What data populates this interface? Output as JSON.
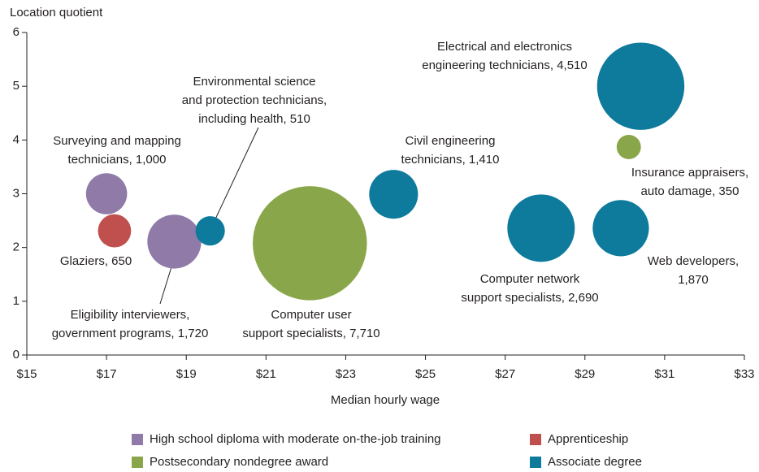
{
  "chart_data": {
    "type": "bubble",
    "ylabel": "Location quotient",
    "xlabel": "Median hourly wage",
    "xlim": [
      15,
      33
    ],
    "ylim": [
      0,
      6
    ],
    "xticks": [
      {
        "value": 15,
        "label": "$15"
      },
      {
        "value": 17,
        "label": "$17"
      },
      {
        "value": 19,
        "label": "$19"
      },
      {
        "value": 21,
        "label": "$21"
      },
      {
        "value": 23,
        "label": "$23"
      },
      {
        "value": 25,
        "label": "$25"
      },
      {
        "value": 27,
        "label": "$27"
      },
      {
        "value": 29,
        "label": "$29"
      },
      {
        "value": 31,
        "label": "$31"
      },
      {
        "value": 33,
        "label": "$33"
      }
    ],
    "yticks": [
      0,
      1,
      2,
      3,
      4,
      5,
      6
    ],
    "series": [
      {
        "name": "High school diploma with moderate on-the-job training",
        "color": "#8f7aa8",
        "x": [
          17.0,
          18.7
        ],
        "values": [
          3.0,
          2.11
        ],
        "sizes": [
          1000,
          1720
        ],
        "labels": [
          [
            "Surveying and mapping",
            "technicians, 1,000"
          ],
          [
            "Eligibility interviewers,",
            "government programs, 1,720"
          ]
        ]
      },
      {
        "name": "Apprenticeship",
        "color": "#c0504d",
        "x": [
          17.2
        ],
        "values": [
          2.31
        ],
        "sizes": [
          650
        ],
        "labels": [
          [
            "Glaziers, 650"
          ]
        ]
      },
      {
        "name": "Postsecondary nondegree award",
        "color": "#8aa64a",
        "x": [
          22.1,
          30.1
        ],
        "values": [
          2.08,
          3.87
        ],
        "sizes": [
          7710,
          350
        ],
        "labels": [
          [
            "Computer user",
            "support specialists, 7,710"
          ],
          [
            "Insurance appraisers,",
            "auto damage, 350"
          ]
        ]
      },
      {
        "name": "Associate degree",
        "color": "#0e7a9c",
        "x": [
          19.6,
          24.2,
          30.4,
          27.9,
          29.9
        ],
        "values": [
          2.31,
          2.99,
          5.0,
          2.36,
          2.36
        ],
        "sizes": [
          510,
          1410,
          4510,
          2690,
          1870
        ],
        "labels": [
          [
            "Environmental science",
            "and protection technicians,",
            "including health, 510"
          ],
          [
            "Civil engineering",
            "technicians, 1,410"
          ],
          [
            "Electrical and electronics",
            "engineering technicians, 4,510"
          ],
          [
            "Computer network",
            "support specialists, 2,690"
          ],
          [
            "Web developers,",
            "1,870"
          ]
        ]
      }
    ]
  }
}
